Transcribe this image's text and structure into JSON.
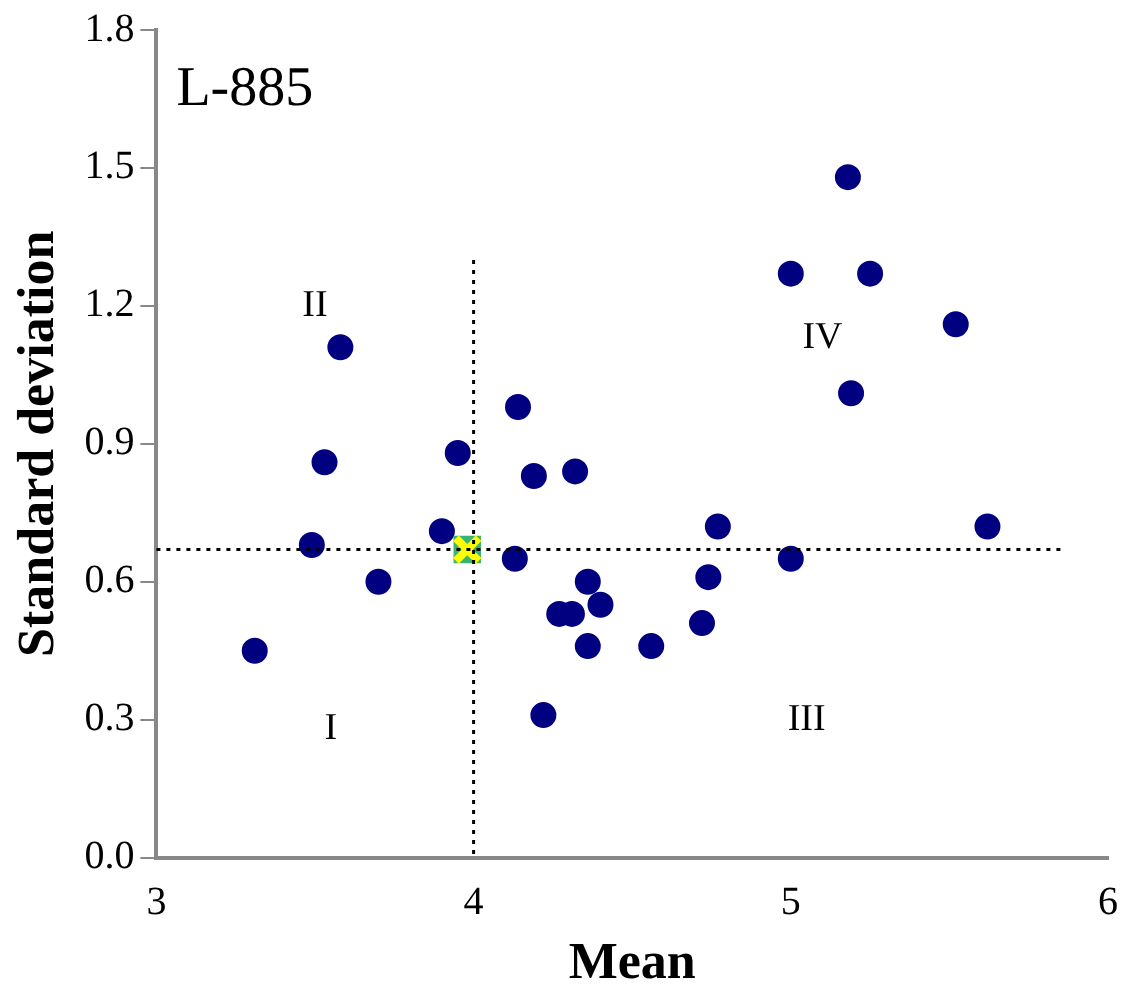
{
  "chart_data": {
    "type": "scatter",
    "title": "L-885",
    "xlabel": "Mean",
    "ylabel": "Standard deviation",
    "xlim": [
      3,
      6
    ],
    "xticks": [
      3,
      4,
      5,
      6
    ],
    "ylim": [
      0,
      1.8
    ],
    "yticks": [
      {
        "value": 0,
        "label": "0.0"
      },
      {
        "value": 0.3,
        "label": "0.3"
      },
      {
        "value": 0.6,
        "label": "0.6"
      },
      {
        "value": 0.9,
        "label": "0.9"
      },
      {
        "value": 1.2,
        "label": "1.2"
      },
      {
        "value": 1.5,
        "label": "1.5"
      },
      {
        "value": 1.8,
        "label": "1.8"
      }
    ],
    "grid": false,
    "legend": false,
    "marker": "circle",
    "series": [
      {
        "color": "#000080",
        "x": [
          3.31,
          3.58,
          3.53,
          3.49,
          3.7,
          3.95,
          3.9,
          4.14,
          4.19,
          4.32,
          4.13,
          4.36,
          4.27,
          4.31,
          4.4,
          4.36,
          4.56,
          4.72,
          4.74,
          4.77,
          5.0,
          4.22,
          5.0,
          5.18,
          5.25,
          5.19,
          5.52,
          5.62
        ],
        "values": [
          0.45,
          1.11,
          0.86,
          0.68,
          0.6,
          0.88,
          0.71,
          0.98,
          0.83,
          0.84,
          0.65,
          0.6,
          0.53,
          0.53,
          0.55,
          0.46,
          0.46,
          0.51,
          0.61,
          0.72,
          0.65,
          0.31,
          1.27,
          1.48,
          1.27,
          1.01,
          1.16,
          0.72
        ]
      },
      {
        "color": "#3cb371",
        "marker": "square",
        "x": [
          3.98
        ],
        "values": [
          0.67
        ]
      },
      {
        "color": "#ffff00",
        "marker": "cross",
        "x": [
          3.98
        ],
        "values": [
          0.67
        ]
      }
    ],
    "ref_lines": [
      {
        "axis": "x",
        "value": 4,
        "line_style": "dotted"
      },
      {
        "axis": "y",
        "value": 0.67,
        "line_style": "dotted"
      }
    ],
    "annotations": [
      "I",
      "II",
      "III",
      "IV"
    ]
  }
}
